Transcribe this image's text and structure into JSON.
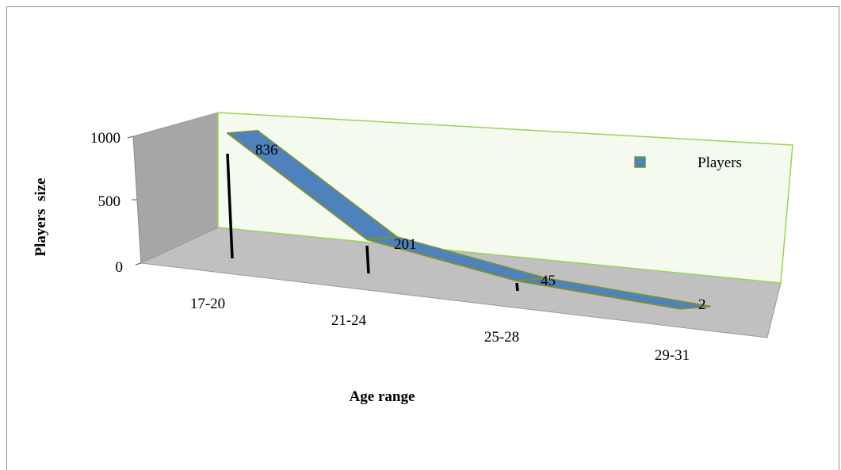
{
  "chart_data": {
    "type": "line",
    "style": "3d-ribbon",
    "categories": [
      "17-20",
      "21-24",
      "25-28",
      "29-31"
    ],
    "series": [
      {
        "name": "Players",
        "values": [
          836,
          201,
          45,
          2
        ],
        "color": "#4f81bd"
      }
    ],
    "data_labels": [
      "836",
      "201",
      "45",
      "2"
    ],
    "xlabel": "Age range",
    "ylabel": "Players  size",
    "yticks": [
      "0",
      "500",
      "1000"
    ],
    "ylim": [
      0,
      1000
    ],
    "legend_position": "right",
    "grid": false,
    "colors": {
      "ribbon_fill": "#4f81bd",
      "ribbon_edge": "#76923c",
      "back_wall": "#f4f9ec",
      "wall_edge": "#9bd35a",
      "side_wall": "#a6a6a6",
      "floor": "#c0c0c0"
    }
  }
}
